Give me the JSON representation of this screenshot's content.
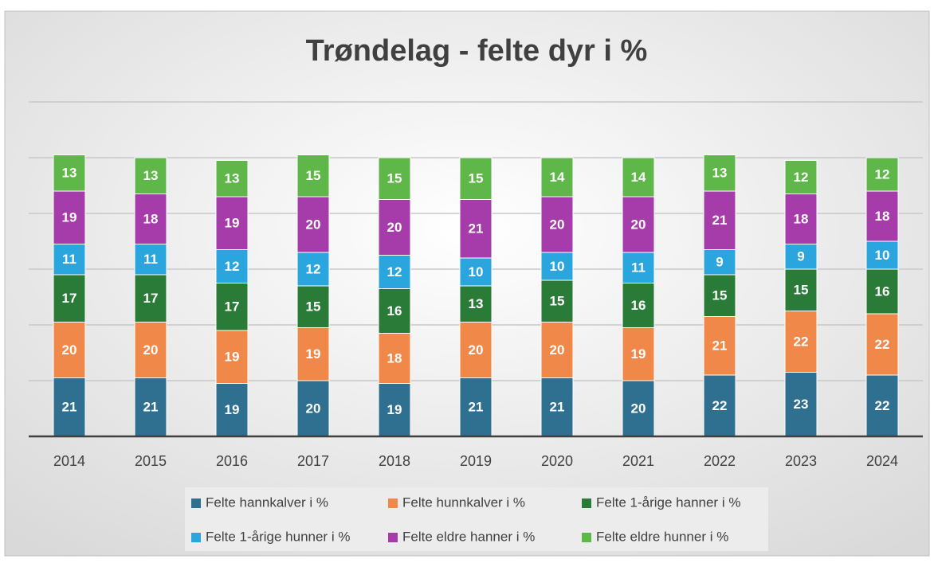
{
  "chart_data": {
    "type": "stacked_bar",
    "title": "Trøndelag - felte dyr i %",
    "categories": [
      "2014",
      "2015",
      "2016",
      "2017",
      "2018",
      "2019",
      "2020",
      "2021",
      "2022",
      "2023",
      "2024"
    ],
    "series": [
      {
        "name": "Felte hannkalver i %",
        "color": "#2f6f8f",
        "values": [
          21,
          21,
          19,
          20,
          19,
          21,
          21,
          20,
          22,
          23,
          22
        ]
      },
      {
        "name": "Felte hunnkalver i %",
        "color": "#ef8848",
        "values": [
          20,
          20,
          19,
          19,
          18,
          20,
          20,
          19,
          21,
          22,
          22
        ]
      },
      {
        "name": "Felte 1-årige hanner i %",
        "color": "#2b7b38",
        "values": [
          17,
          17,
          17,
          15,
          16,
          13,
          15,
          16,
          15,
          15,
          16
        ]
      },
      {
        "name": "Felte 1-årige hunner i %",
        "color": "#2ba5dd",
        "values": [
          11,
          11,
          12,
          12,
          12,
          10,
          10,
          11,
          9,
          9,
          10
        ]
      },
      {
        "name": "Felte eldre hanner i %",
        "color": "#a53ca9",
        "values": [
          19,
          18,
          19,
          20,
          20,
          21,
          20,
          20,
          21,
          18,
          18
        ]
      },
      {
        "name": "Felte eldre hunner i %",
        "color": "#5fb649",
        "values": [
          13,
          13,
          13,
          15,
          15,
          15,
          14,
          14,
          13,
          12,
          12
        ]
      }
    ],
    "ylim": [
      0,
      120
    ],
    "yticks": [
      0,
      20,
      40,
      60,
      80,
      100,
      120
    ],
    "grid": true
  }
}
